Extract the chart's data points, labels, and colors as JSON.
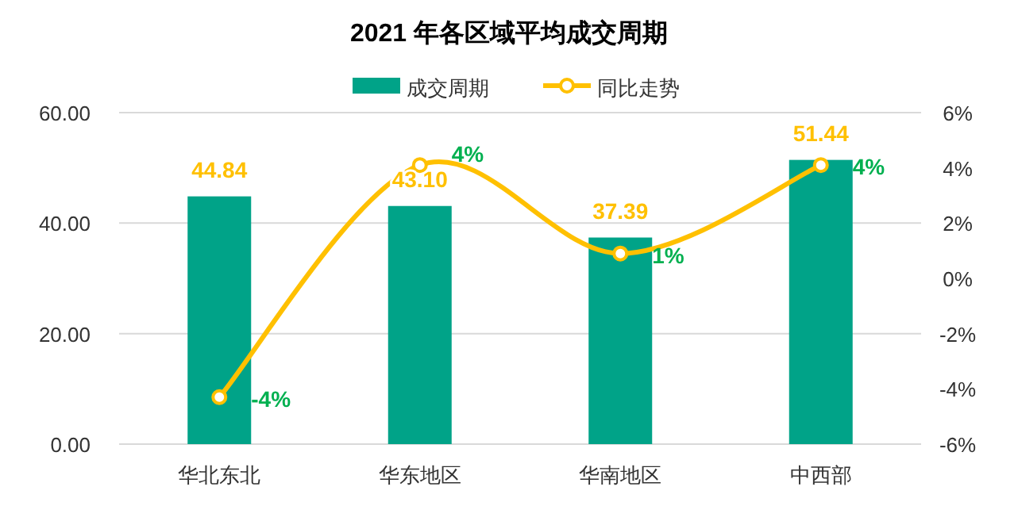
{
  "chart_data": {
    "type": "bar",
    "title": "2021 年各区域平均成交周期",
    "categories": [
      "华北东北",
      "华东地区",
      "华南地区",
      "中西部"
    ],
    "series": [
      {
        "name": "成交周期",
        "color": "#00a388",
        "values": [
          44.84,
          43.1,
          37.39,
          51.44
        ],
        "value_labels": [
          "44.84",
          "43.10",
          "37.39",
          "51.44"
        ]
      },
      {
        "name": "同比走势",
        "type": "line",
        "axis": "y2",
        "color": "#ffc000",
        "values": [
          -4.3,
          4.1,
          0.9,
          4.1
        ],
        "value_labels": [
          "-4%",
          "4%",
          "1%",
          "4%"
        ]
      }
    ],
    "ylim": [
      0,
      60
    ],
    "yticks": [
      {
        "value": 0,
        "label": "0.00"
      },
      {
        "value": 20,
        "label": "20.00"
      },
      {
        "value": 40,
        "label": "40.00"
      },
      {
        "value": 60,
        "label": "60.00"
      }
    ],
    "y2lim": [
      -6,
      6
    ],
    "y2ticks": [
      {
        "value": -6,
        "label": "-6%"
      },
      {
        "value": -4,
        "label": "-4%"
      },
      {
        "value": -2,
        "label": "-2%"
      },
      {
        "value": 0,
        "label": "0%"
      },
      {
        "value": 2,
        "label": "2%"
      },
      {
        "value": 4,
        "label": "4%"
      },
      {
        "value": 6,
        "label": "6%"
      }
    ],
    "grid": "y",
    "legend": "top",
    "marker": "circle"
  }
}
